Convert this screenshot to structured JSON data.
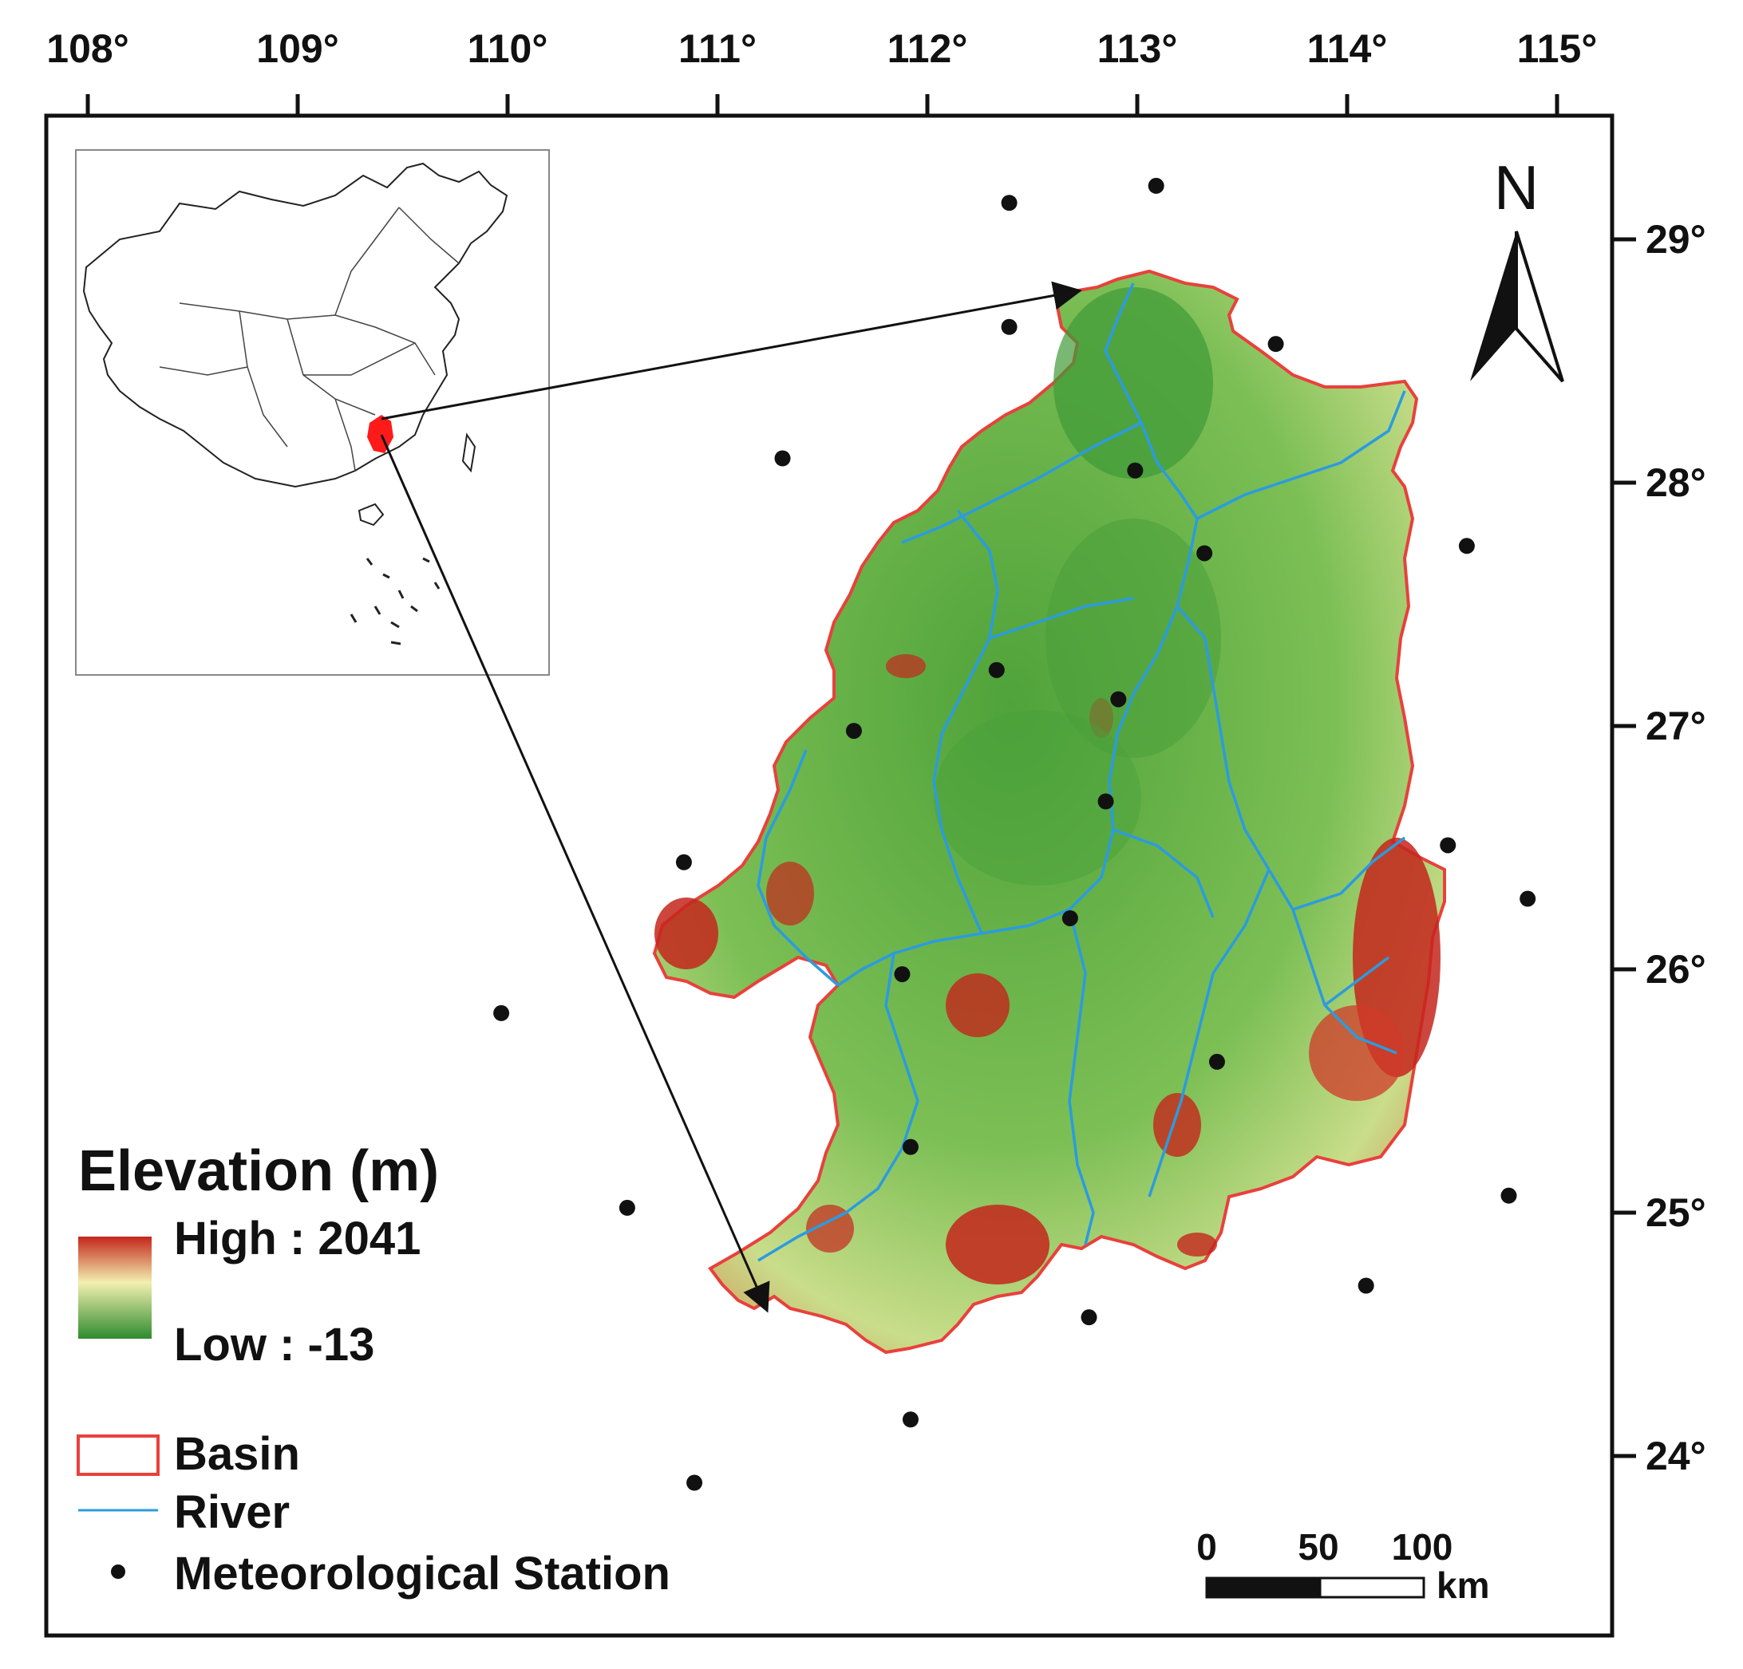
{
  "map": {
    "lon_ticks": [
      "108°",
      "109°",
      "110°",
      "111°",
      "112°",
      "113°",
      "114°",
      "115°"
    ],
    "lat_ticks": [
      "29°",
      "28°",
      "27°",
      "26°",
      "25°",
      "24°"
    ],
    "north_label": "N",
    "stations": [
      {
        "lon": 112.39,
        "lat": 29.15
      },
      {
        "lon": 113.09,
        "lat": 29.22
      },
      {
        "lon": 112.39,
        "lat": 28.64
      },
      {
        "lon": 113.66,
        "lat": 28.57
      },
      {
        "lon": 111.31,
        "lat": 28.1
      },
      {
        "lon": 112.99,
        "lat": 28.05
      },
      {
        "lon": 113.32,
        "lat": 27.71
      },
      {
        "lon": 114.57,
        "lat": 27.74
      },
      {
        "lon": 112.33,
        "lat": 27.23
      },
      {
        "lon": 112.91,
        "lat": 27.11
      },
      {
        "lon": 111.65,
        "lat": 26.98
      },
      {
        "lon": 112.85,
        "lat": 26.69
      },
      {
        "lon": 114.48,
        "lat": 26.51
      },
      {
        "lon": 110.84,
        "lat": 26.44
      },
      {
        "lon": 114.86,
        "lat": 26.29
      },
      {
        "lon": 112.68,
        "lat": 26.21
      },
      {
        "lon": 111.88,
        "lat": 25.98
      },
      {
        "lon": 109.97,
        "lat": 25.82
      },
      {
        "lon": 113.38,
        "lat": 25.62
      },
      {
        "lon": 111.92,
        "lat": 25.27
      },
      {
        "lon": 114.77,
        "lat": 25.07
      },
      {
        "lon": 110.57,
        "lat": 25.02
      },
      {
        "lon": 114.09,
        "lat": 24.7
      },
      {
        "lon": 112.77,
        "lat": 24.57
      },
      {
        "lon": 111.92,
        "lat": 24.15
      },
      {
        "lon": 110.89,
        "lat": 23.89
      }
    ]
  },
  "legend": {
    "title": "Elevation (m)",
    "high_label": "High : 2041",
    "low_label": "Low : -13",
    "basin_label": "Basin",
    "river_label": "River",
    "station_label": "Meteorological Station"
  },
  "scale_bar": {
    "labels": [
      "0",
      "50",
      "100"
    ],
    "unit": "km"
  },
  "colors": {
    "basin_outline": "#e8413c",
    "river": "#2b9be0",
    "elev_low": "#2e8b2e",
    "elev_mid": "#f2f0b0",
    "elev_high": "#c4261c",
    "inset_highlight": "#ff1a1a"
  }
}
